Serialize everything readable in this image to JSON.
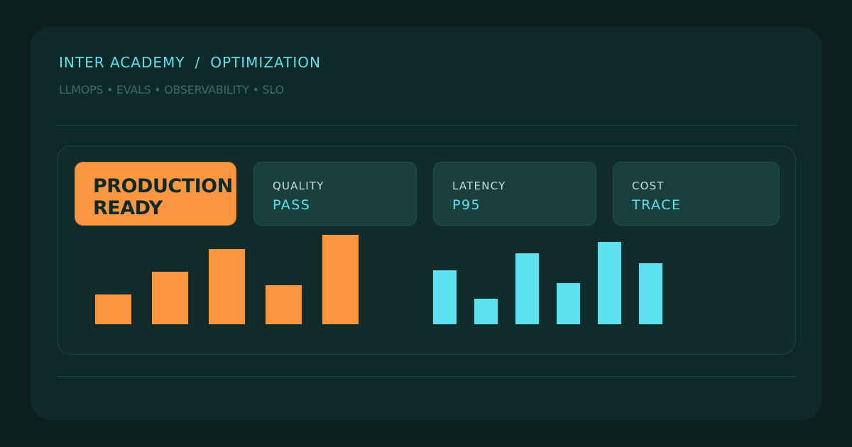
{
  "header": {
    "breadcrumb": [
      "INTER ACADEMY",
      "OPTIMIZATION"
    ],
    "separator": "/",
    "subtitle": "LLMOPS • EVALS • OBSERVABILITY • SLO"
  },
  "panel": {
    "badge": {
      "line1": "PRODUCTION",
      "line2": "READY"
    },
    "metrics": [
      {
        "label": "QUALITY",
        "value": "PASS"
      },
      {
        "label": "LATENCY",
        "value": "P95"
      },
      {
        "label": "COST",
        "value": "TRACE"
      }
    ]
  },
  "colors": {
    "accent_orange": "#fd9640",
    "accent_cyan": "#5ee2f2",
    "background": "#0b1f1e",
    "card": "#0d2a29"
  },
  "chart_data": [
    {
      "type": "bar",
      "color": "#fd9640",
      "values": [
        42,
        74,
        106,
        55,
        126
      ]
    },
    {
      "type": "bar",
      "color": "#5ee2f2",
      "values": [
        76,
        36,
        100,
        58,
        116,
        86
      ]
    }
  ]
}
